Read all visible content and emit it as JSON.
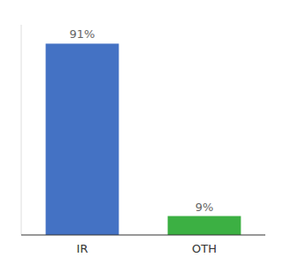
{
  "chart_data": {
    "type": "bar",
    "categories": [
      "IR",
      "OTH"
    ],
    "values": [
      91,
      9
    ],
    "colors": [
      "#4472c4",
      "#3cb043"
    ],
    "value_labels": [
      "91%",
      "9%"
    ],
    "data_labels": true,
    "ylim": [
      0,
      100
    ],
    "tick_labels": "x",
    "grid": false
  }
}
